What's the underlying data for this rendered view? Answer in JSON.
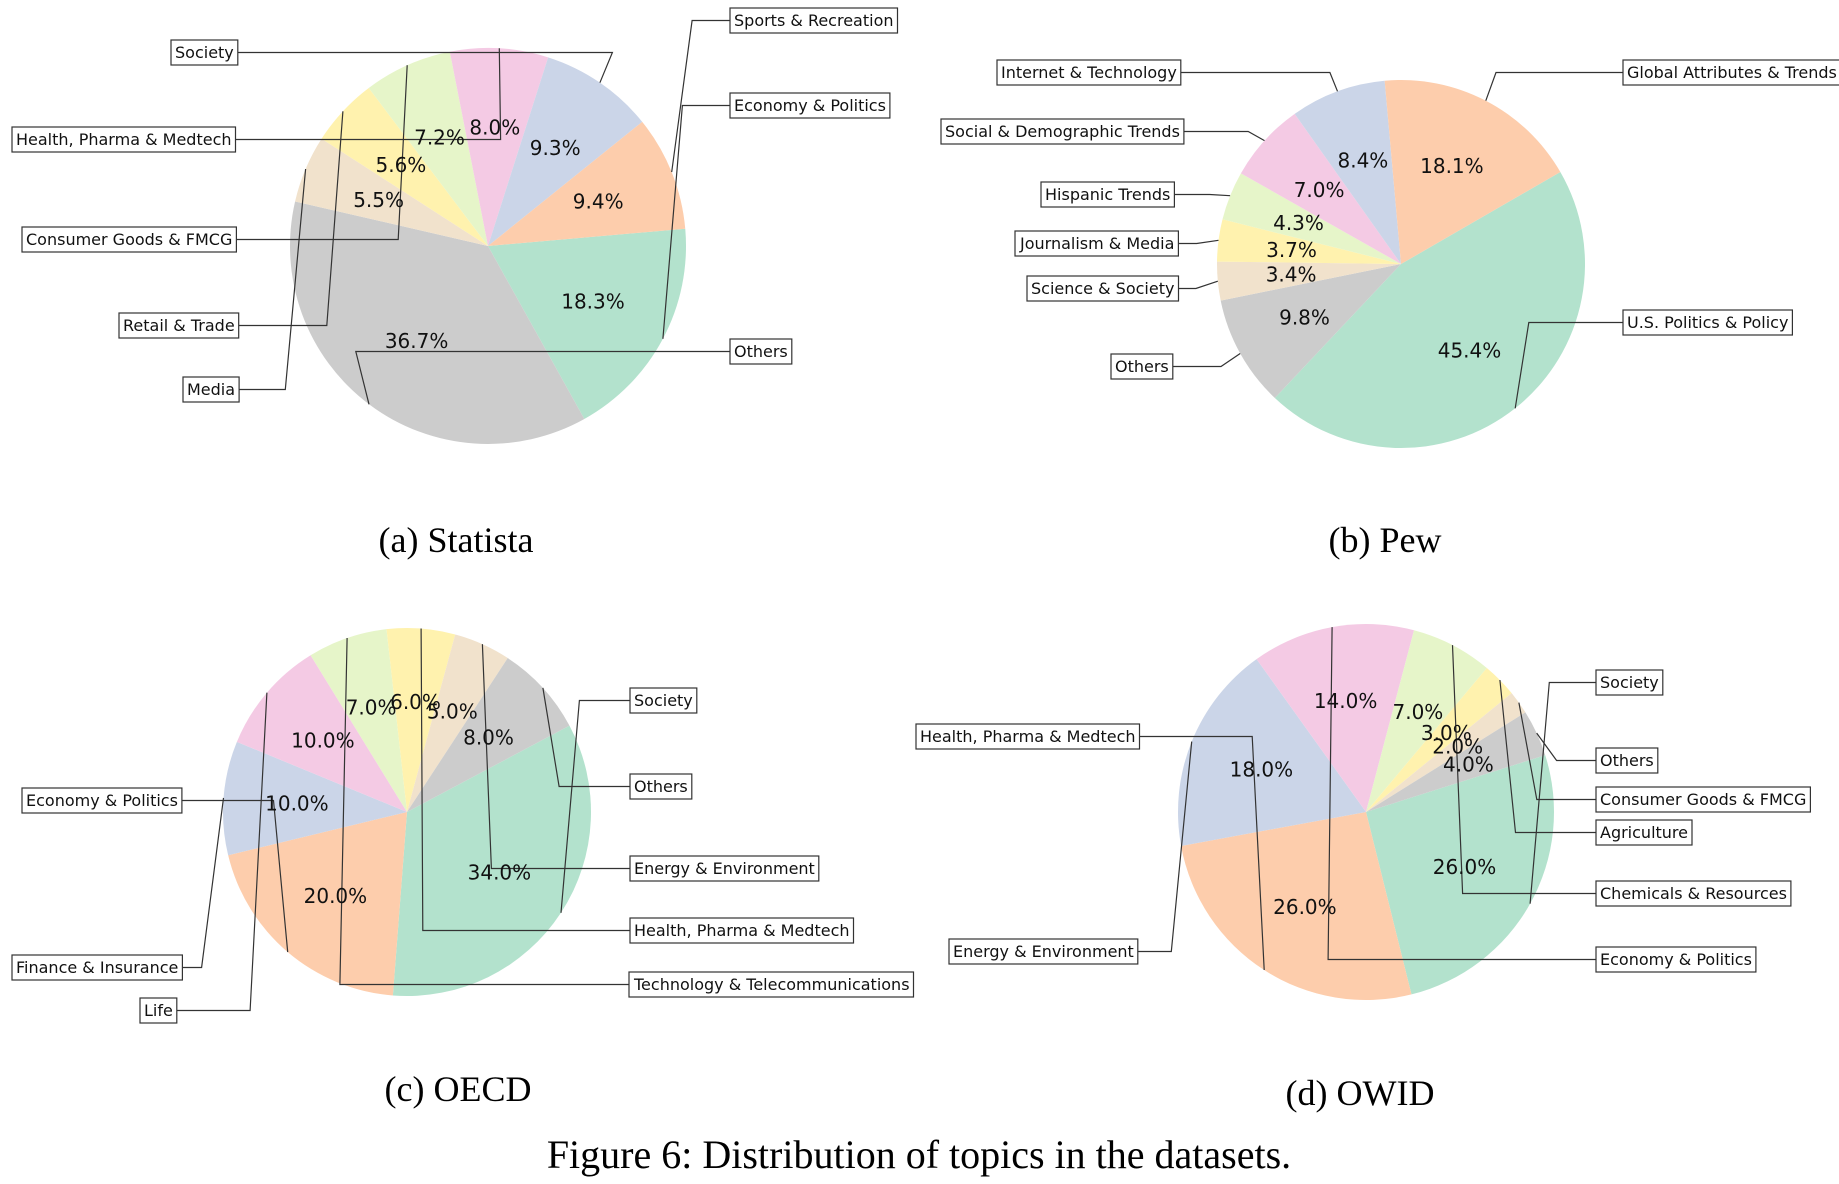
{
  "figure_caption": "Figure 6: Distribution of topics in the datasets.",
  "palette": {
    "green": "#b3e2cd",
    "grey": "#cccccc",
    "beige": "#f1e2cc",
    "yellow": "#fff2ae",
    "lime": "#e6f5c9",
    "pink": "#f4cae4",
    "blue": "#cbd5e8",
    "orange": "#fdcdac"
  },
  "chart_data": [
    {
      "type": "pie",
      "caption": "(a) Statista",
      "labels": [
        "Economy & Politics",
        "Others",
        "Media",
        "Retail & Trade",
        "Consumer Goods & FMCG",
        "Health, Pharma & Medtech",
        "Society",
        "Sports & Recreation"
      ],
      "values": [
        18.3,
        36.7,
        5.5,
        5.6,
        7.2,
        8.0,
        9.3,
        9.4
      ],
      "value_labels": [
        "18.3%",
        "36.7%",
        "5.5%",
        "5.6%",
        "7.2%",
        "8.0%",
        "9.3%",
        "9.4%"
      ],
      "colors": [
        "#b3e2cd",
        "#cccccc",
        "#f1e2cc",
        "#fff2ae",
        "#e6f5c9",
        "#f4cae4",
        "#cbd5e8",
        "#fdcdac"
      ]
    },
    {
      "type": "pie",
      "caption": "(b) Pew",
      "labels": [
        "U.S. Politics & Policy",
        "Others",
        "Science & Society",
        "Journalism & Media",
        "Hispanic Trends",
        "Social & Demographic Trends",
        "Internet & Technology",
        "Global Attributes & Trends"
      ],
      "values": [
        45.4,
        9.8,
        3.4,
        3.7,
        4.3,
        7.0,
        8.4,
        18.1
      ],
      "value_labels": [
        "45.4%",
        "9.8%",
        "3.4%",
        "3.7%",
        "4.3%",
        "7.0%",
        "8.4%",
        "18.1%"
      ],
      "colors": [
        "#b3e2cd",
        "#cccccc",
        "#f1e2cc",
        "#fff2ae",
        "#e6f5c9",
        "#f4cae4",
        "#cbd5e8",
        "#fdcdac"
      ]
    },
    {
      "type": "pie",
      "caption": "(c) OECD",
      "labels": [
        "Society",
        "Economy & Politics",
        "Finance & Insurance",
        "Life",
        "Technology & Telecommunications",
        "Health, Pharma & Medtech",
        "Energy & Environment",
        "Others"
      ],
      "values": [
        34.0,
        20.0,
        10.0,
        10.0,
        7.0,
        6.0,
        5.0,
        8.0
      ],
      "value_labels": [
        "34.0%",
        "20.0%",
        "10.0%",
        "10.0%",
        "7.0%",
        "6.0%",
        "5.0%",
        "8.0%"
      ],
      "colors": [
        "#b3e2cd",
        "#fdcdac",
        "#cbd5e8",
        "#f4cae4",
        "#e6f5c9",
        "#fff2ae",
        "#f1e2cc",
        "#cccccc"
      ]
    },
    {
      "type": "pie",
      "caption": "(d) OWID",
      "labels": [
        "Society",
        "Health, Pharma & Medtech",
        "Energy & Environment",
        "Economy & Politics",
        "Chemicals & Resources",
        "Agriculture",
        "Consumer Goods & FMCG",
        "Others"
      ],
      "values": [
        26.0,
        26.0,
        18.0,
        14.0,
        7.0,
        3.0,
        2.0,
        4.0
      ],
      "value_labels": [
        "26.0%",
        "26.0%",
        "18.0%",
        "14.0%",
        "7.0%",
        "3.0%",
        "2.0%",
        "4.0%"
      ],
      "colors": [
        "#b3e2cd",
        "#fdcdac",
        "#cbd5e8",
        "#f4cae4",
        "#e6f5c9",
        "#fff2ae",
        "#f1e2cc",
        "#cccccc"
      ]
    }
  ]
}
